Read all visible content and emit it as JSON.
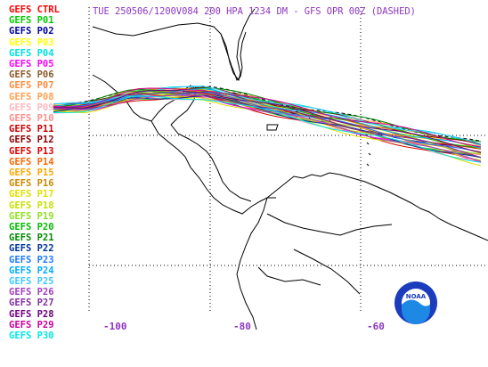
{
  "title": "TUE 250506/1200V084  200 HPA 1234 DM - GFS OPR 00Z (DASHED)",
  "longitude_labels": [
    "-100",
    "-80",
    "-60"
  ],
  "legend": [
    {
      "label": "GEFS CTRL",
      "color": "#ff0000"
    },
    {
      "label": "GEFS P01",
      "color": "#00cc00"
    },
    {
      "label": "GEFS P02",
      "color": "#0000a0"
    },
    {
      "label": "GEFS P03",
      "color": "#ffff00"
    },
    {
      "label": "GEFS P04",
      "color": "#00e0e0"
    },
    {
      "label": "GEFS P05",
      "color": "#ff00ff"
    },
    {
      "label": "GEFS P06",
      "color": "#8b5a2b"
    },
    {
      "label": "GEFS P07",
      "color": "#ff8c40"
    },
    {
      "label": "GEFS P08",
      "color": "#ffa050"
    },
    {
      "label": "GEFS P09",
      "color": "#ffb6c1"
    },
    {
      "label": "GEFS P10",
      "color": "#ff8c8c"
    },
    {
      "label": "GEFS P11",
      "color": "#cc0000"
    },
    {
      "label": "GEFS P12",
      "color": "#8b0000"
    },
    {
      "label": "GEFS P13",
      "color": "#dd0000"
    },
    {
      "label": "GEFS P14",
      "color": "#ff6600"
    },
    {
      "label": "GEFS P15",
      "color": "#ffa500"
    },
    {
      "label": "GEFS P16",
      "color": "#cc8800"
    },
    {
      "label": "GEFS P17",
      "color": "#e0e000"
    },
    {
      "label": "GEFS P18",
      "color": "#c8e000"
    },
    {
      "label": "GEFS P19",
      "color": "#90e020"
    },
    {
      "label": "GEFS P20",
      "color": "#00bb00"
    },
    {
      "label": "GEFS P21",
      "color": "#008800"
    },
    {
      "label": "GEFS P22",
      "color": "#003399"
    },
    {
      "label": "GEFS P23",
      "color": "#1e78ff"
    },
    {
      "label": "GEFS P24",
      "color": "#00aaff"
    },
    {
      "label": "GEFS P25",
      "color": "#40c8ff"
    },
    {
      "label": "GEFS P26",
      "color": "#a040c0"
    },
    {
      "label": "GEFS P27",
      "color": "#8030a0"
    },
    {
      "label": "GEFS P28",
      "color": "#700080"
    },
    {
      "label": "GEFS P29",
      "color": "#cc0099"
    },
    {
      "label": "GEFS P30",
      "color": "#00e8e8"
    }
  ],
  "logo": {
    "text": "NOAA",
    "colors": {
      "outer": "#1a3cbd",
      "inner": "#ffffff",
      "wave": "#1e88e5"
    }
  }
}
